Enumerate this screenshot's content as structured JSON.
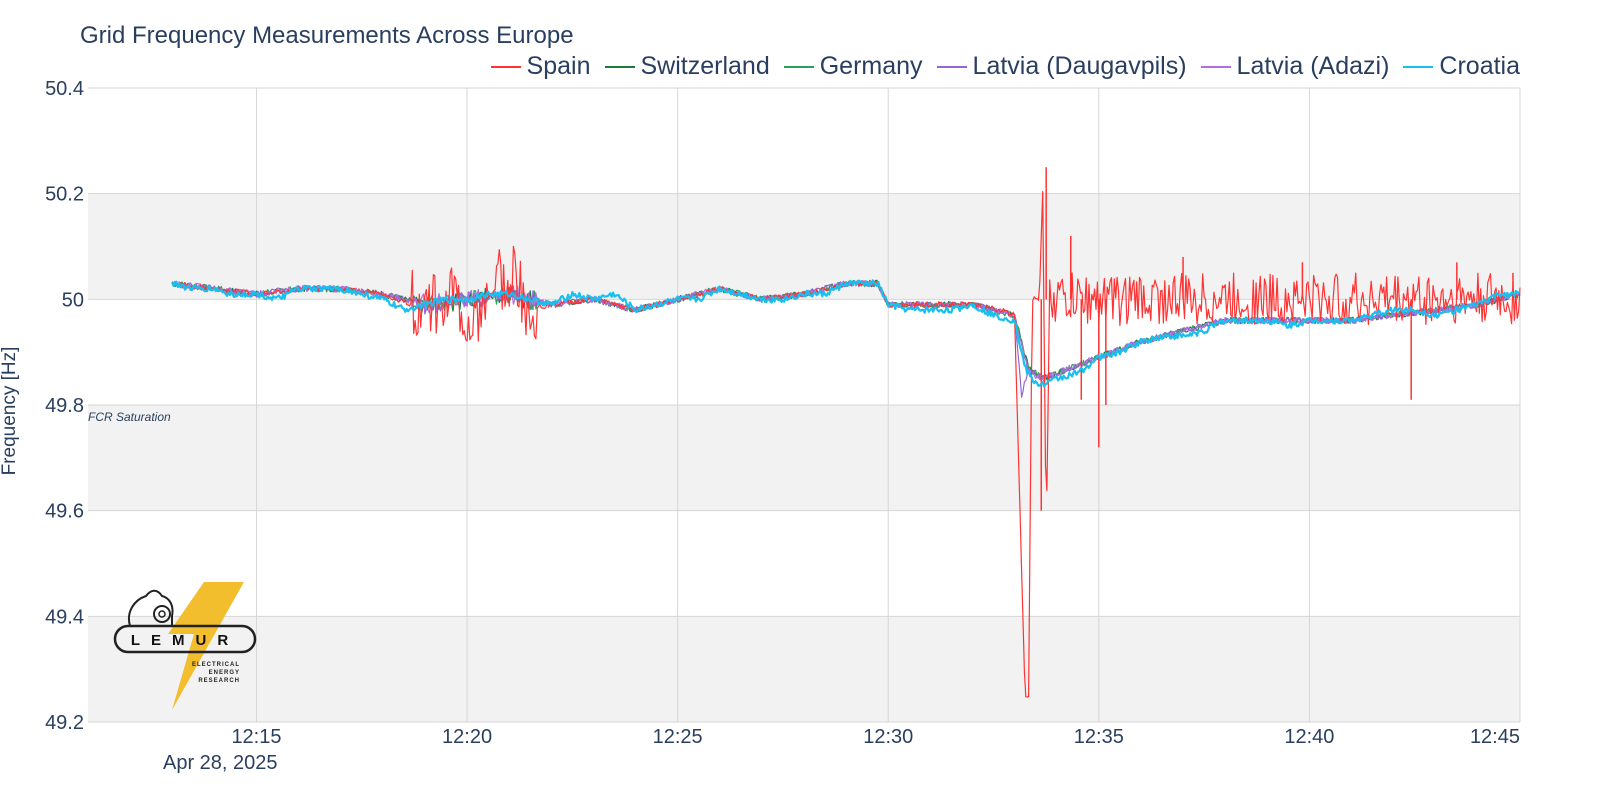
{
  "chart_data": {
    "type": "line",
    "title": "Grid Frequency Measurements Across Europe",
    "ylabel": "Frequency [Hz]",
    "xlabel": "",
    "date_label": "Apr 28, 2025",
    "ylim": [
      49.2,
      50.4
    ],
    "yticks": [
      49.2,
      49.4,
      49.6,
      49.8,
      50,
      50.2,
      50.4
    ],
    "ytick_labels": [
      "49.2",
      "49.4",
      "49.6",
      "49.8",
      "50",
      "50.2",
      "50.4"
    ],
    "xlim": [
      "12:11:00",
      "12:45:00"
    ],
    "xticks": [
      "12:15",
      "12:20",
      "12:25",
      "12:30",
      "12:35",
      "12:40",
      "12:45"
    ],
    "grid": true,
    "legend_position": "top-right",
    "annotation": "FCR Saturation",
    "series": [
      {
        "name": "Spain",
        "color": "#ff3333",
        "x": [
          "12:13:00",
          "12:14:00",
          "12:15:00",
          "12:16:00",
          "12:17:00",
          "12:18:00",
          "12:19:00",
          "12:19:30",
          "12:20:00",
          "12:20:30",
          "12:21:00",
          "12:21:30",
          "12:22:00",
          "12:23:00",
          "12:24:00",
          "12:25:00",
          "12:26:00",
          "12:27:00",
          "12:28:00",
          "12:29:00",
          "12:29:45",
          "12:30:00",
          "12:31:00",
          "12:32:00",
          "12:32:40",
          "12:33:00",
          "12:33:15",
          "12:33:20",
          "12:33:25",
          "12:33:30",
          "12:33:35",
          "12:33:40",
          "12:33:45",
          "12:33:50",
          "12:34:00",
          "12:34:30",
          "12:35:00",
          "12:36:00",
          "12:37:00",
          "12:38:00",
          "12:39:00",
          "12:40:00",
          "12:41:00",
          "12:42:00",
          "12:43:00",
          "12:44:00",
          "12:45:00"
        ],
        "y": [
          50.03,
          50.02,
          50.01,
          50.02,
          50.02,
          50.01,
          49.98,
          50.02,
          49.95,
          50.0,
          50.05,
          49.98,
          49.99,
          50.0,
          49.98,
          50.0,
          50.02,
          50.0,
          50.01,
          50.03,
          50.03,
          49.99,
          49.99,
          49.99,
          49.98,
          49.97,
          49.25,
          49.25,
          50.0,
          50.0,
          50.0,
          50.2,
          49.55,
          50.01,
          50.0,
          50.0,
          50.0,
          50.0,
          50.0,
          50.0,
          50.0,
          50.0,
          50.0,
          50.0,
          50.0,
          50.0,
          50.0
        ],
        "noise_start": "12:33:50",
        "noise_amplitude": 0.05,
        "spikes": [
          [
            "12:33:38",
            49.6
          ],
          [
            "12:33:45",
            50.25
          ],
          [
            "12:34:20",
            50.12
          ],
          [
            "12:34:35",
            49.81
          ],
          [
            "12:35:00",
            49.72
          ],
          [
            "12:35:10",
            49.8
          ],
          [
            "12:37:00",
            50.08
          ],
          [
            "12:39:50",
            50.07
          ],
          [
            "12:42:25",
            49.81
          ],
          [
            "12:43:30",
            50.07
          ],
          [
            "12:44:50",
            50.05
          ]
        ]
      },
      {
        "name": "Switzerland",
        "color": "#1b7a3a",
        "x": [
          "12:13:00",
          "12:14:00",
          "12:15:00",
          "12:16:00",
          "12:17:00",
          "12:18:00",
          "12:19:00",
          "12:20:00",
          "12:21:00",
          "12:22:00",
          "12:23:00",
          "12:24:00",
          "12:25:00",
          "12:26:00",
          "12:27:00",
          "12:28:00",
          "12:29:00",
          "12:29:45",
          "12:30:00",
          "12:31:00",
          "12:32:00",
          "12:33:00",
          "12:33:20",
          "12:33:40",
          "12:34:00",
          "12:35:00",
          "12:36:00",
          "12:37:00",
          "12:38:00",
          "12:39:00",
          "12:40:00",
          "12:41:00",
          "12:42:00",
          "12:43:00",
          "12:44:00",
          "12:45:00"
        ],
        "y": [
          50.03,
          50.02,
          50.01,
          50.02,
          50.02,
          50.01,
          49.99,
          50.0,
          50.01,
          49.99,
          50.0,
          49.98,
          50.0,
          50.02,
          50.0,
          50.01,
          50.03,
          50.03,
          49.99,
          49.99,
          49.99,
          49.97,
          49.87,
          49.85,
          49.86,
          49.89,
          49.92,
          49.94,
          49.96,
          49.96,
          49.96,
          49.96,
          49.97,
          49.98,
          49.99,
          50.01
        ]
      },
      {
        "name": "Germany",
        "color": "#2ca05a",
        "x": [
          "12:13:00",
          "12:14:00",
          "12:15:00",
          "12:16:00",
          "12:17:00",
          "12:18:00",
          "12:19:00",
          "12:20:00",
          "12:21:00",
          "12:22:00",
          "12:23:00",
          "12:24:00",
          "12:25:00",
          "12:26:00",
          "12:27:00",
          "12:28:00",
          "12:29:00",
          "12:29:45",
          "12:30:00",
          "12:31:00",
          "12:32:00",
          "12:33:00",
          "12:33:20",
          "12:33:40",
          "12:34:00",
          "12:35:00",
          "12:36:00",
          "12:37:00",
          "12:38:00",
          "12:39:00",
          "12:40:00",
          "12:41:00",
          "12:42:00",
          "12:43:00",
          "12:44:00",
          "12:45:00"
        ],
        "y": [
          50.03,
          50.02,
          50.01,
          50.02,
          50.02,
          50.01,
          49.99,
          50.0,
          50.01,
          49.99,
          50.0,
          49.98,
          50.0,
          50.02,
          50.0,
          50.01,
          50.03,
          50.03,
          49.99,
          49.99,
          49.99,
          49.97,
          49.87,
          49.85,
          49.86,
          49.89,
          49.92,
          49.94,
          49.96,
          49.96,
          49.96,
          49.96,
          49.97,
          49.98,
          49.99,
          50.01
        ]
      },
      {
        "name": "Latvia (Daugavpils)",
        "color": "#9467d0",
        "x": [
          "12:13:00",
          "12:14:00",
          "12:15:00",
          "12:16:00",
          "12:17:00",
          "12:18:00",
          "12:19:00",
          "12:20:00",
          "12:21:00",
          "12:22:00",
          "12:23:00",
          "12:24:00",
          "12:25:00",
          "12:26:00",
          "12:27:00",
          "12:28:00",
          "12:29:00",
          "12:29:45",
          "12:30:00",
          "12:31:00",
          "12:32:00",
          "12:33:00",
          "12:33:10",
          "12:33:20",
          "12:33:40",
          "12:34:00",
          "12:35:00",
          "12:36:00",
          "12:37:00",
          "12:38:00",
          "12:39:00",
          "12:40:00",
          "12:41:00",
          "12:42:00",
          "12:43:00",
          "12:44:00",
          "12:45:00"
        ],
        "y": [
          50.03,
          50.02,
          50.01,
          50.02,
          50.02,
          50.01,
          49.99,
          50.0,
          50.01,
          49.99,
          50.0,
          49.98,
          50.0,
          50.02,
          50.0,
          50.01,
          50.03,
          50.03,
          49.99,
          49.99,
          49.99,
          49.97,
          49.82,
          49.87,
          49.85,
          49.86,
          49.89,
          49.92,
          49.94,
          49.96,
          49.96,
          49.96,
          49.96,
          49.97,
          49.98,
          49.99,
          50.01
        ]
      },
      {
        "name": "Latvia (Adazi)",
        "color": "#b06ee0",
        "x": [
          "12:13:00",
          "12:14:00",
          "12:15:00",
          "12:16:00",
          "12:17:00",
          "12:18:00",
          "12:19:00",
          "12:20:00",
          "12:21:00",
          "12:22:00",
          "12:23:00",
          "12:24:00",
          "12:25:00",
          "12:26:00",
          "12:27:00",
          "12:28:00",
          "12:29:00",
          "12:29:45",
          "12:30:00",
          "12:31:00",
          "12:32:00",
          "12:33:00",
          "12:33:20",
          "12:33:40",
          "12:34:00",
          "12:35:00",
          "12:36:00",
          "12:37:00",
          "12:38:00",
          "12:39:00",
          "12:40:00",
          "12:41:00",
          "12:42:00",
          "12:43:00",
          "12:44:00",
          "12:45:00"
        ],
        "y": [
          50.03,
          50.02,
          50.01,
          50.02,
          50.02,
          50.01,
          49.99,
          50.0,
          50.01,
          49.99,
          50.0,
          49.98,
          50.0,
          50.02,
          50.0,
          50.01,
          50.03,
          50.03,
          49.99,
          49.99,
          49.99,
          49.97,
          49.86,
          49.85,
          49.86,
          49.89,
          49.92,
          49.94,
          49.96,
          49.96,
          49.96,
          49.96,
          49.97,
          49.98,
          49.99,
          50.01
        ]
      },
      {
        "name": "Croatia",
        "color": "#18bfef",
        "x": [
          "12:13:00",
          "12:13:30",
          "12:14:00",
          "12:14:20",
          "12:14:40",
          "12:15:00",
          "12:15:30",
          "12:16:00",
          "12:16:30",
          "12:17:00",
          "12:17:30",
          "12:18:00",
          "12:18:30",
          "12:19:00",
          "12:19:30",
          "12:20:00",
          "12:20:30",
          "12:21:00",
          "12:21:30",
          "12:22:00",
          "12:22:30",
          "12:23:00",
          "12:23:30",
          "12:24:00",
          "12:24:30",
          "12:25:00",
          "12:25:30",
          "12:26:00",
          "12:26:30",
          "12:27:00",
          "12:27:30",
          "12:28:00",
          "12:28:30",
          "12:29:00",
          "12:29:45",
          "12:30:00",
          "12:30:30",
          "12:31:00",
          "12:31:30",
          "12:32:00",
          "12:32:30",
          "12:33:00",
          "12:33:15",
          "12:33:30",
          "12:33:45",
          "12:34:00",
          "12:34:30",
          "12:35:00",
          "12:35:30",
          "12:36:00",
          "12:36:30",
          "12:37:00",
          "12:37:30",
          "12:38:00",
          "12:38:30",
          "12:39:00",
          "12:39:30",
          "12:40:00",
          "12:40:30",
          "12:41:00",
          "12:41:30",
          "12:42:00",
          "12:42:30",
          "12:43:00",
          "12:43:30",
          "12:44:00",
          "12:44:30",
          "12:45:00"
        ],
        "y": [
          50.03,
          50.02,
          50.02,
          50.01,
          50.01,
          50.01,
          50.0,
          50.02,
          50.02,
          50.02,
          50.01,
          50.0,
          49.98,
          49.99,
          50.0,
          50.0,
          50.01,
          50.01,
          50.0,
          49.99,
          50.01,
          50.0,
          50.01,
          49.98,
          49.99,
          50.0,
          50.0,
          50.02,
          50.01,
          50.0,
          50.0,
          50.01,
          50.01,
          50.03,
          50.03,
          49.99,
          49.98,
          49.98,
          49.98,
          49.99,
          49.97,
          49.96,
          49.87,
          49.84,
          49.84,
          49.85,
          49.86,
          49.89,
          49.9,
          49.92,
          49.93,
          49.93,
          49.94,
          49.96,
          49.96,
          49.96,
          49.95,
          49.96,
          49.96,
          49.96,
          49.97,
          49.98,
          49.98,
          49.97,
          49.98,
          49.99,
          50.01,
          50.01
        ]
      }
    ]
  },
  "logo": {
    "name": "LEMUR",
    "subtitle_lines": [
      "ELECTRICAL",
      "ENERGY",
      "RESEARCH"
    ],
    "bolt_color": "#f2be2e"
  }
}
